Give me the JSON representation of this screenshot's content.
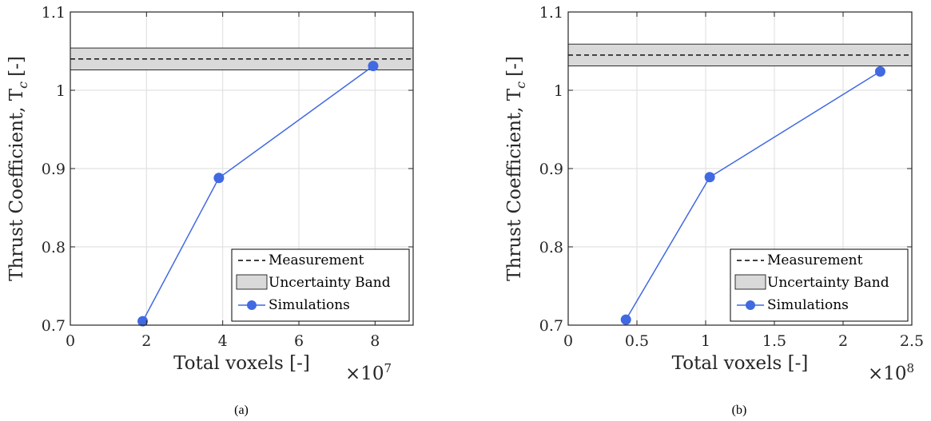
{
  "chart_data": [
    {
      "type": "line",
      "caption": "(a)",
      "xlabel": "Total voxels [-]",
      "ylabel": "Thrust Coefficient, T",
      "ylabel_sub": "c",
      "ylabel_unit": "[-]",
      "x_multiplier_base": "×10",
      "x_multiplier_exp": "7",
      "xlim": [
        0,
        9
      ],
      "ylim": [
        0.7,
        1.1
      ],
      "xticks": [
        0,
        2,
        4,
        6,
        8
      ],
      "xtick_labels": [
        "0",
        "2",
        "4",
        "6",
        "8"
      ],
      "yticks": [
        0.7,
        0.8,
        0.9,
        1.0,
        1.1
      ],
      "ytick_labels": [
        "0.7",
        "0.8",
        "0.9",
        "1",
        "1.1"
      ],
      "grid": true,
      "legend_position": "bottom-right",
      "measurement": 1.04,
      "uncertainty_band": [
        1.026,
        1.054
      ],
      "series": [
        {
          "name": "Simulations",
          "x": [
            1.9,
            3.9,
            7.95
          ],
          "y": [
            0.705,
            0.888,
            1.031
          ]
        }
      ],
      "legend": [
        "Measurement",
        "Uncertainty Band",
        "Simulations"
      ]
    },
    {
      "type": "line",
      "caption": "(b)",
      "xlabel": "Total voxels [-]",
      "ylabel": "Thrust Coefficient, T",
      "ylabel_sub": "c",
      "ylabel_unit": "[-]",
      "x_multiplier_base": "×10",
      "x_multiplier_exp": "8",
      "xlim": [
        0,
        2.5
      ],
      "ylim": [
        0.7,
        1.1
      ],
      "xticks": [
        0,
        0.5,
        1,
        1.5,
        2,
        2.5
      ],
      "xtick_labels": [
        "0",
        "0.5",
        "1",
        "1.5",
        "2",
        "2.5"
      ],
      "yticks": [
        0.7,
        0.8,
        0.9,
        1.0,
        1.1
      ],
      "ytick_labels": [
        "0.7",
        "0.8",
        "0.9",
        "1",
        "1.1"
      ],
      "grid": true,
      "legend_position": "bottom-right",
      "measurement": 1.045,
      "uncertainty_band": [
        1.031,
        1.059
      ],
      "series": [
        {
          "name": "Simulations",
          "x": [
            0.42,
            1.03,
            2.27
          ],
          "y": [
            0.707,
            0.889,
            1.024
          ]
        }
      ],
      "legend": [
        "Measurement",
        "Uncertainty Band",
        "Simulations"
      ]
    }
  ],
  "colors": {
    "series": "#4169e1",
    "band": "#d9d9d9",
    "grid": "#e2e2e2",
    "axis": "#262626"
  }
}
